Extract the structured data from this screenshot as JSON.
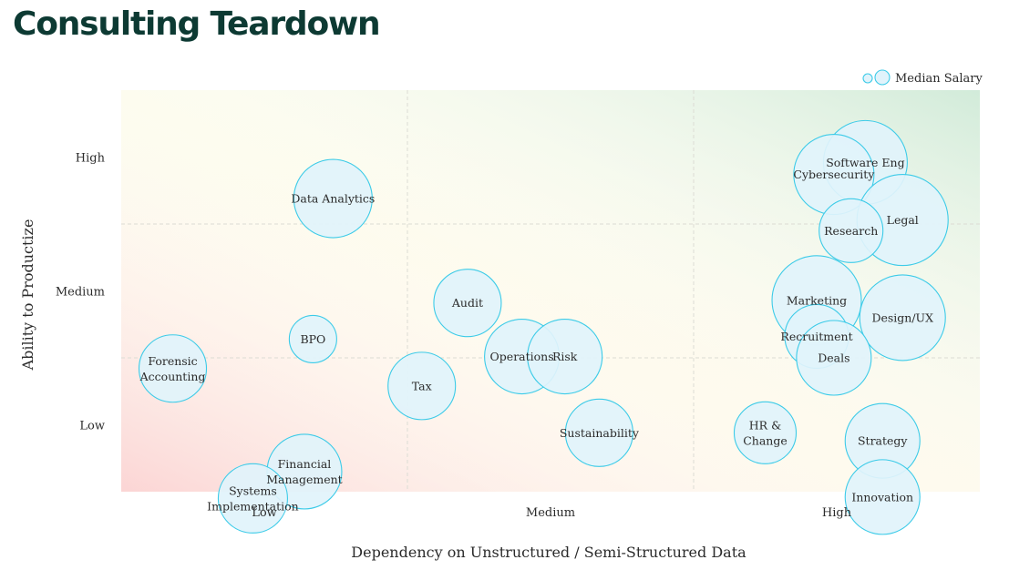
{
  "title": "Consulting Teardown",
  "chart_data": {
    "type": "scatter",
    "title": "Consulting Teardown",
    "xlabel": "Dependency on Unstructured / Semi-Structured Data",
    "ylabel": "Ability to Productize",
    "x_ticks": [
      {
        "value": 1,
        "label": "Low"
      },
      {
        "value": 2,
        "label": "Medium"
      },
      {
        "value": 3,
        "label": "High"
      }
    ],
    "y_ticks": [
      {
        "value": 1,
        "label": "Low"
      },
      {
        "value": 2,
        "label": "Medium"
      },
      {
        "value": 3,
        "label": "High"
      }
    ],
    "xlim": [
      0.5,
      3.5
    ],
    "ylim": [
      0.5,
      3.5
    ],
    "grid": true,
    "size_legend": "Median Salary",
    "legend_position": "top-right",
    "bubble_fill": "#e1f3fb",
    "bubble_stroke": "#3ccbe8",
    "points": [
      {
        "label": "Software Eng",
        "x": 3.1,
        "y": 2.96,
        "size": 46
      },
      {
        "label": "Cybersecurity",
        "x": 2.99,
        "y": 2.87,
        "size": 44
      },
      {
        "label": "Legal",
        "x": 3.23,
        "y": 2.53,
        "size": 50
      },
      {
        "label": "Research",
        "x": 3.05,
        "y": 2.45,
        "size": 35
      },
      {
        "label": "Data Analytics",
        "x": 1.24,
        "y": 2.69,
        "size": 43
      },
      {
        "label": "Marketing",
        "x": 2.93,
        "y": 1.93,
        "size": 49
      },
      {
        "label": "Recruitment",
        "x": 2.93,
        "y": 1.66,
        "size": 35
      },
      {
        "label": "Design/UX",
        "x": 3.23,
        "y": 1.8,
        "size": 47
      },
      {
        "label": "Deals",
        "x": 2.99,
        "y": 1.5,
        "size": 41
      },
      {
        "label": "Audit",
        "x": 1.71,
        "y": 1.91,
        "size": 37
      },
      {
        "label": "Operations",
        "x": 1.9,
        "y": 1.51,
        "size": 41
      },
      {
        "label": "Risk",
        "x": 2.05,
        "y": 1.51,
        "size": 41
      },
      {
        "label": "BPO",
        "x": 1.17,
        "y": 1.64,
        "size": 26
      },
      {
        "label": "Forensic Accounting",
        "x": 0.68,
        "y": 1.42,
        "size": 37
      },
      {
        "label": "Tax",
        "x": 1.55,
        "y": 1.29,
        "size": 37
      },
      {
        "label": "Sustainability",
        "x": 2.17,
        "y": 0.94,
        "size": 37
      },
      {
        "label": "HR & Change",
        "x": 2.75,
        "y": 0.94,
        "size": 34
      },
      {
        "label": "Strategy",
        "x": 3.16,
        "y": 0.88,
        "size": 41
      },
      {
        "label": "Innovation",
        "x": 3.16,
        "y": 0.46,
        "size": 41
      },
      {
        "label": "Financial Management",
        "x": 1.14,
        "y": 0.65,
        "size": 41
      },
      {
        "label": "Systems Implementation",
        "x": 0.96,
        "y": 0.45,
        "size": 38
      }
    ]
  }
}
